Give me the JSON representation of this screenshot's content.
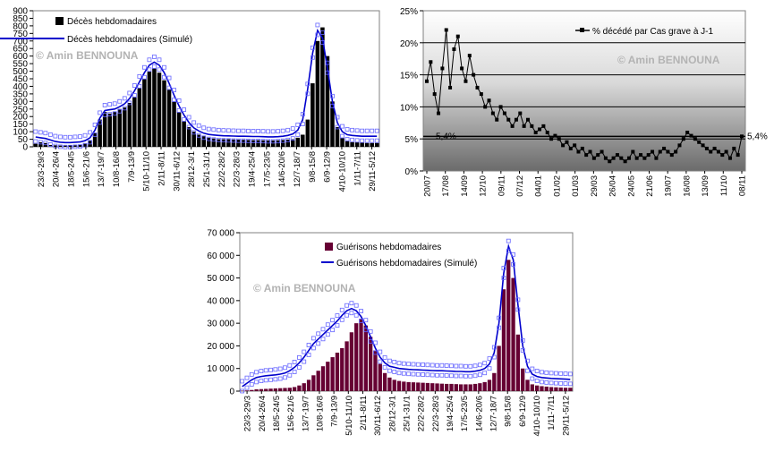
{
  "chart_data": [
    {
      "type": "bar",
      "series": [
        {
          "name": "Décès hebdomadaires",
          "kind": "bar",
          "color": "#000000"
        },
        {
          "name": "Décès hebdomadaires (Simulé)",
          "kind": "line",
          "color": "#0000cc"
        }
      ],
      "watermark": "© Amin BENNOUNA",
      "ylim": [
        0,
        900
      ],
      "yticks": [
        "0",
        "50",
        "100",
        "150",
        "200",
        "250",
        "300",
        "350",
        "400",
        "450",
        "500",
        "550",
        "600",
        "650",
        "700",
        "750",
        "800",
        "850",
        "900"
      ],
      "xticks": [
        "23/3-29/3",
        "20/4-26/4",
        "18/5-24/5",
        "15/6-21/6",
        "13/7-19/7",
        "10/8-16/8",
        "7/9-13/9",
        "5/10-11/10",
        "2/11-8/11",
        "30/11-6/12",
        "28/12-3/1",
        "25/1-31/1",
        "22/2-28/2",
        "22/3-28/3",
        "19/4-25/4",
        "17/5-23/5",
        "14/6-20/6",
        "12/7-18/7",
        "9/8-15/8",
        "6/9-12/9",
        "4/10-10/10",
        "1/11-7/11",
        "29/11-5/12"
      ],
      "values": [
        20,
        30,
        25,
        12,
        10,
        8,
        8,
        10,
        10,
        12,
        20,
        40,
        90,
        180,
        230,
        220,
        230,
        250,
        260,
        290,
        330,
        390,
        450,
        500,
        520,
        490,
        440,
        380,
        300,
        230,
        170,
        130,
        100,
        80,
        70,
        60,
        55,
        50,
        50,
        50,
        48,
        47,
        46,
        45,
        44,
        44,
        43,
        42,
        42,
        43,
        45,
        48,
        50,
        60,
        80,
        180,
        420,
        700,
        790,
        600,
        300,
        130,
        60,
        40,
        30,
        30,
        28,
        25,
        25,
        25
      ],
      "simulated": [
        65,
        60,
        55,
        45,
        35,
        30,
        28,
        28,
        30,
        32,
        40,
        60,
        110,
        190,
        240,
        245,
        250,
        265,
        285,
        320,
        370,
        430,
        490,
        540,
        560,
        540,
        490,
        420,
        340,
        270,
        210,
        160,
        125,
        105,
        90,
        82,
        78,
        75,
        73,
        72,
        71,
        70,
        70,
        69,
        68,
        68,
        67,
        66,
        66,
        67,
        70,
        75,
        85,
        110,
        180,
        380,
        620,
        770,
        720,
        520,
        300,
        160,
        100,
        80,
        75,
        72,
        70,
        70,
        70,
        70
      ]
    },
    {
      "type": "line",
      "series": [
        {
          "name": "% décédé par Cas grave à J-1",
          "color": "#000000"
        }
      ],
      "watermark": "© Amin BENNOUNA",
      "ylim": [
        0,
        25
      ],
      "yticks": [
        "0%",
        "5%",
        "10%",
        "15%",
        "20%",
        "25%"
      ],
      "xticks": [
        "20/07",
        "17/08",
        "14/09",
        "12/10",
        "09/11",
        "07/12",
        "04/01",
        "01/02",
        "01/03",
        "29/03",
        "26/04",
        "24/05",
        "21/06",
        "19/07",
        "16/08",
        "13/09",
        "11/10",
        "08/11"
      ],
      "annotations": [
        {
          "text": "5,4%",
          "value": 5.4
        },
        {
          "text": "5,4%",
          "value": 5.4
        }
      ],
      "values": [
        14,
        17,
        12,
        9,
        16,
        22,
        13,
        19,
        21,
        16,
        14,
        18,
        15,
        13,
        12,
        10,
        11,
        9,
        8,
        10,
        9,
        8,
        7,
        8,
        9,
        7,
        8,
        7,
        6,
        6.5,
        7,
        6,
        5,
        5.5,
        5,
        4,
        4.5,
        3.5,
        4,
        3,
        3.5,
        2.5,
        3,
        2,
        2.5,
        3,
        2,
        1.5,
        2,
        2.5,
        2,
        1.5,
        2,
        3,
        2,
        2.5,
        2,
        2.5,
        3,
        2,
        3,
        3.5,
        3,
        2.5,
        3,
        4,
        5,
        6,
        5.5,
        5,
        4.5,
        4,
        3.5,
        3,
        3.5,
        3,
        2.5,
        3,
        2,
        3.5,
        2.5,
        5.4
      ]
    },
    {
      "type": "bar",
      "series": [
        {
          "name": "Guérisons hebdomadaires",
          "kind": "bar",
          "color": "#660033"
        },
        {
          "name": "Guérisons hebdomadaires (Simulé)",
          "kind": "line",
          "color": "#0000cc"
        }
      ],
      "watermark": "© Amin BENNOUNA",
      "ylim": [
        0,
        70000
      ],
      "yticks": [
        "0",
        "10 000",
        "20 000",
        "30 000",
        "40 000",
        "50 000",
        "60 000",
        "70 000"
      ],
      "xticks": [
        "23/3-29/3",
        "20/4-26/4",
        "18/5-24/5",
        "15/6-21/6",
        "13/7-19/7",
        "10/8-16/8",
        "7/9-13/9",
        "5/10-11/10",
        "2/11-8/11",
        "30/11-6/12",
        "28/12-3/1",
        "25/1-31/1",
        "22/2-28/2",
        "22/3-28/3",
        "19/4-25/4",
        "17/5-23/5",
        "14/6-20/6",
        "12/7-18/7",
        "9/8-15/8",
        "6/9-12/9",
        "4/10-10/10",
        "1/11-7/11",
        "29/11-5/12"
      ],
      "values": [
        200,
        300,
        500,
        800,
        900,
        1000,
        1100,
        1200,
        1300,
        1400,
        1500,
        1800,
        2500,
        3500,
        5000,
        7000,
        9000,
        11000,
        13000,
        15000,
        17000,
        19000,
        22000,
        26000,
        30000,
        32000,
        29000,
        24000,
        18000,
        12000,
        8000,
        6000,
        5000,
        4500,
        4200,
        4000,
        3900,
        3800,
        3700,
        3600,
        3500,
        3400,
        3300,
        3200,
        3200,
        3100,
        3000,
        3000,
        3000,
        3200,
        3500,
        4000,
        5000,
        8000,
        20000,
        45000,
        58000,
        50000,
        25000,
        10000,
        5000,
        3000,
        2500,
        2200,
        2000,
        1800,
        1700,
        1600,
        1500,
        1500
      ],
      "simulated": [
        2000,
        3500,
        5000,
        6000,
        6500,
        6800,
        7000,
        7200,
        7500,
        8000,
        9000,
        10500,
        12500,
        15000,
        18000,
        21000,
        23000,
        25000,
        27000,
        29000,
        31000,
        33500,
        35500,
        36500,
        35500,
        33000,
        29000,
        24000,
        19000,
        15000,
        12500,
        11000,
        10500,
        10000,
        9800,
        9600,
        9500,
        9400,
        9300,
        9200,
        9100,
        9000,
        9000,
        8900,
        8800,
        8700,
        8700,
        8600,
        8600,
        8800,
        9200,
        10000,
        12000,
        17000,
        30000,
        52000,
        64000,
        58000,
        38000,
        20000,
        11000,
        7500,
        6500,
        6000,
        5800,
        5600,
        5500,
        5400,
        5300,
        5200
      ]
    }
  ]
}
